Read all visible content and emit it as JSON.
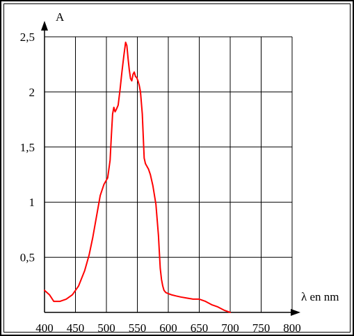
{
  "chart_data": {
    "type": "line",
    "ylabel": "A",
    "xlabel": "λ en nm",
    "xlim": [
      400,
      800
    ],
    "ylim": [
      0,
      2.5
    ],
    "x_tick_labels": [
      "400",
      "450",
      "500",
      "550",
      "600",
      "650",
      "700",
      "750",
      "800"
    ],
    "x_tick_values": [
      400,
      450,
      500,
      550,
      600,
      650,
      700,
      750,
      800
    ],
    "y_tick_labels": [
      "0,5",
      "1",
      "1,5",
      "2",
      "2,5"
    ],
    "y_tick_values": [
      0.5,
      1,
      1.5,
      2,
      2.5
    ],
    "grid": true,
    "line_color": "#ff0000",
    "series": [
      {
        "x": [
          400,
          408,
          415,
          425,
          435,
          445,
          455,
          465,
          472,
          478,
          485,
          490,
          496,
          502,
          506,
          508,
          510,
          512,
          514,
          516,
          519,
          522,
          525,
          528,
          531,
          533,
          535,
          537,
          539,
          541,
          543,
          545,
          547,
          549,
          551,
          553,
          555,
          558,
          561,
          563,
          565,
          566,
          568,
          571,
          575,
          580,
          584,
          587,
          589,
          591,
          593,
          596,
          600,
          605,
          612,
          620,
          630,
          640,
          650,
          660,
          670,
          680,
          690,
          700
        ],
        "y": [
          0.2,
          0.16,
          0.1,
          0.1,
          0.12,
          0.16,
          0.24,
          0.38,
          0.52,
          0.68,
          0.9,
          1.06,
          1.16,
          1.22,
          1.38,
          1.6,
          1.8,
          1.86,
          1.82,
          1.84,
          1.88,
          2.02,
          2.18,
          2.32,
          2.45,
          2.42,
          2.3,
          2.2,
          2.12,
          2.1,
          2.16,
          2.18,
          2.14,
          2.13,
          2.1,
          2.06,
          2.0,
          1.8,
          1.4,
          1.35,
          1.33,
          1.32,
          1.3,
          1.25,
          1.15,
          0.98,
          0.7,
          0.4,
          0.3,
          0.24,
          0.2,
          0.18,
          0.17,
          0.16,
          0.15,
          0.14,
          0.13,
          0.12,
          0.12,
          0.1,
          0.07,
          0.05,
          0.02,
          0.0
        ]
      }
    ]
  }
}
